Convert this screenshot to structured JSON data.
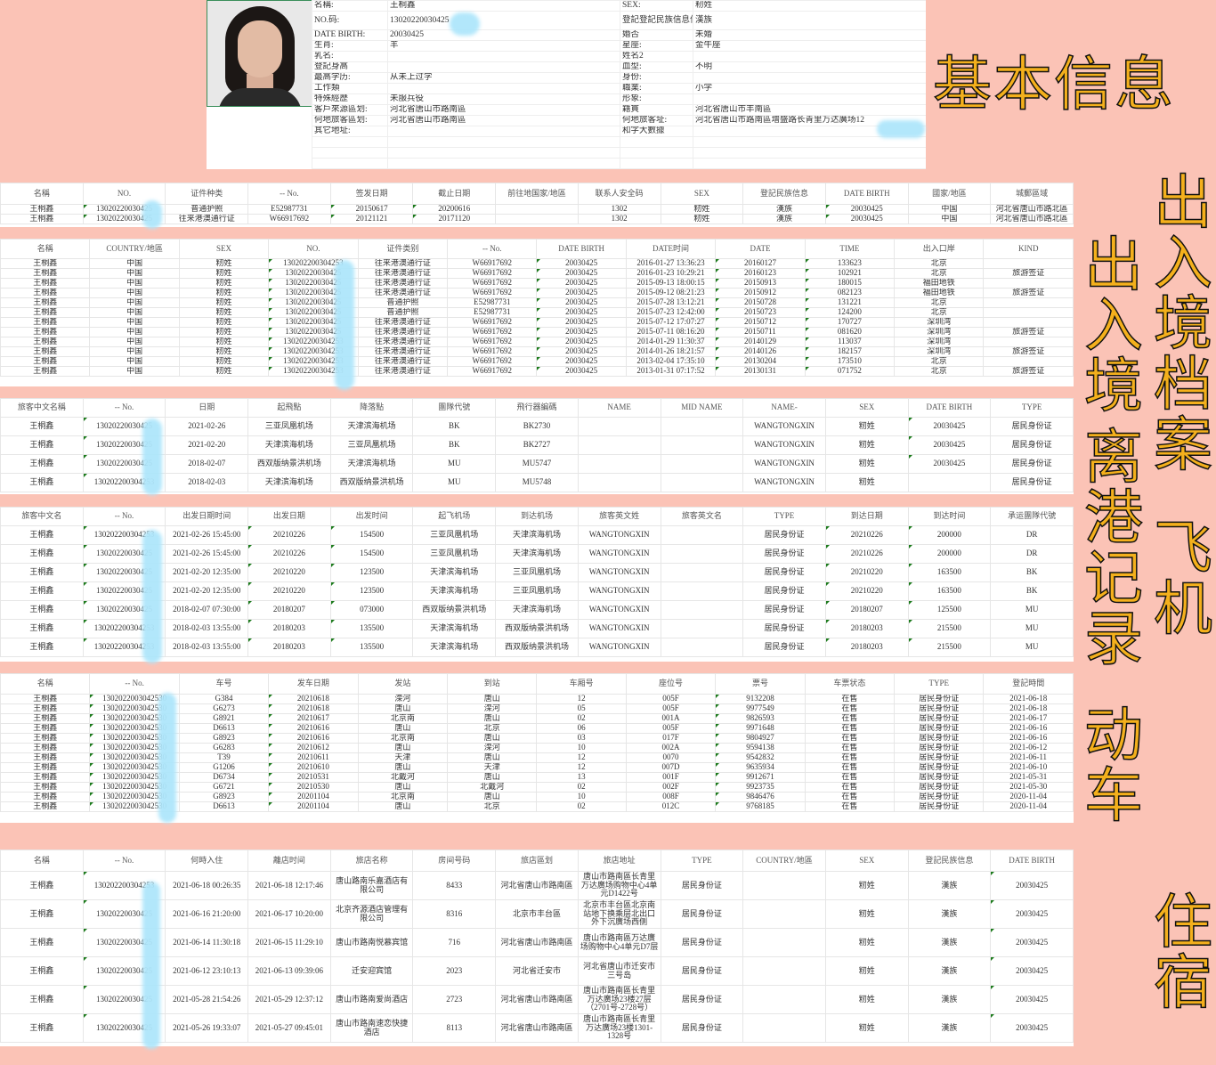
{
  "overlay_labels": {
    "basic": "基本信息",
    "archive": "出入境档案",
    "border": "出入境",
    "departure": "离港记录",
    "flight": "飞机",
    "train": "动车",
    "lodging": "住宿"
  },
  "colors": {
    "background": "#fbc3b6",
    "label_fill": "#f4b01c",
    "blur_mark": "#aee6fb"
  },
  "basic_info": {
    "photo_icon": "portrait-photo",
    "rows": [
      [
        "名稱:",
        "王桐鑫",
        "SEX:",
        "籾姓"
      ],
      [
        "NO.码:",
        "13020220030425",
        "登記登記民族信息信息:",
        "漢族"
      ],
      [
        "DATE BIRTH:",
        "20030425",
        "婚否",
        "未婚"
      ],
      [
        "生肖:",
        "羊",
        "星座:",
        "金牛座"
      ],
      [
        "乳名:",
        "",
        "姓名2",
        ""
      ],
      [
        "登記身高",
        "",
        "血型:",
        "不明"
      ],
      [
        "最高学历:",
        "从未上过学",
        "身份:",
        ""
      ],
      [
        "工作類",
        "",
        "職業:",
        "小学"
      ],
      [
        "特殊經歷",
        "未服兵役",
        "形象:",
        ""
      ],
      [
        "客戶來源區划:",
        "河北省唐山市路南區",
        "籍貫",
        "河北省唐山市丰南區"
      ],
      [
        "何地旅客區划:",
        "河北省唐山市路南區",
        "何地旅客址:",
        "河北省唐山市路南區增盛路长青里万达廣场12"
      ],
      [
        "其它地址:",
        "",
        "和字大數據",
        ""
      ]
    ]
  },
  "sections": [
    {
      "id": "s2",
      "name": "exit-entry-archive-table",
      "headers": [
        "名稱",
        "NO.",
        "证件种类",
        "-- No.",
        "签发日期",
        "截止日期",
        "前往地国家/地區",
        "联系人安全码",
        "SEX",
        "登記民族信息",
        "DATE BIRTH",
        "國家/地區",
        "城郵區域"
      ],
      "rows": [
        [
          "王桐鑫",
          "13020220030425",
          "普通护照",
          "E52987731",
          "20150617",
          "20200616",
          "",
          "1302",
          "籾姓",
          "漢族",
          "20030425",
          "中国",
          "河北省唐山市路北區"
        ],
        [
          "王桐鑫",
          "13020220030425",
          "往来港澳通行证",
          "W66917692",
          "20121121",
          "20171120",
          "",
          "1302",
          "籾姓",
          "漢族",
          "20030425",
          "中国",
          "河北省唐山市路北區"
        ]
      ]
    },
    {
      "id": "s3",
      "name": "exit-entry-records-table",
      "headers": [
        "名稱",
        "COUNTRY/地區",
        "SEX",
        "NO.",
        "证件类别",
        "-- No.",
        "DATE BIRTH",
        "DATE时间",
        "DATE",
        "TIME",
        "出入口岸",
        "KIND"
      ],
      "rows": [
        [
          "王桐鑫",
          "中国",
          "籾姓",
          "130202200304253",
          "往来港澳通行证",
          "W66917692",
          "20030425",
          "2016-01-27 13:36:23",
          "20160127",
          "133623",
          "北京",
          ""
        ],
        [
          "王桐鑫",
          "中国",
          "籾姓",
          "13020220030425",
          "往来港澳通行证",
          "W66917692",
          "20030425",
          "2016-01-23 10:29:21",
          "20160123",
          "102921",
          "北京",
          "旅游签证"
        ],
        [
          "王桐鑫",
          "中国",
          "籾姓",
          "13020220030425",
          "往来港澳通行证",
          "W66917692",
          "20030425",
          "2015-09-13 18:00:15",
          "20150913",
          "180015",
          "福田地铁",
          ""
        ],
        [
          "王桐鑫",
          "中国",
          "籾姓",
          "13020220030425",
          "往来港澳通行证",
          "W66917692",
          "20030425",
          "2015-09-12 08:21:23",
          "20150912",
          "082123",
          "福田地铁",
          "旅游签证"
        ],
        [
          "王桐鑫",
          "中国",
          "籾姓",
          "13020220030425",
          "普通护照",
          "E52987731",
          "20030425",
          "2015-07-28 13:12:21",
          "20150728",
          "131221",
          "北京",
          ""
        ],
        [
          "王桐鑫",
          "中国",
          "籾姓",
          "13020220030425",
          "普通护照",
          "E52987731",
          "20030425",
          "2015-07-23 12:42:00",
          "20150723",
          "124200",
          "北京",
          ""
        ],
        [
          "王桐鑫",
          "中国",
          "籾姓",
          "13020220030425",
          "往来港澳通行证",
          "W66917692",
          "20030425",
          "2015-07-12 17:07:27",
          "20150712",
          "170727",
          "深圳湾",
          ""
        ],
        [
          "王桐鑫",
          "中国",
          "籾姓",
          "13020220030425",
          "往来港澳通行证",
          "W66917692",
          "20030425",
          "2015-07-11 08:16:20",
          "20150711",
          "081620",
          "深圳湾",
          "旅游签证"
        ],
        [
          "王桐鑫",
          "中国",
          "籾姓",
          "130202200304253",
          "往来港澳通行证",
          "W66917692",
          "20030425",
          "2014-01-29 11:30:37",
          "20140129",
          "113037",
          "深圳湾",
          ""
        ],
        [
          "王桐鑫",
          "中国",
          "籾姓",
          "130202200304253",
          "往来港澳通行证",
          "W66917692",
          "20030425",
          "2014-01-26 18:21:57",
          "20140126",
          "182157",
          "深圳湾",
          "旅游签证"
        ],
        [
          "王桐鑫",
          "中国",
          "籾姓",
          "130202200304253",
          "往来港澳通行证",
          "W66917692",
          "20030425",
          "2013-02-04 17:35:10",
          "20130204",
          "173510",
          "北京",
          ""
        ],
        [
          "王桐鑫",
          "中国",
          "籾姓",
          "130202200304253",
          "往来港澳通行证",
          "W66917692",
          "20030425",
          "2013-01-31 07:17:52",
          "20130131",
          "071752",
          "北京",
          "旅游签证"
        ]
      ]
    },
    {
      "id": "s4",
      "name": "departure-records-table",
      "headers": [
        "旅客中文名稱",
        "-- No.",
        "日期",
        "起飛點",
        "降落點",
        "團隊代號",
        "飛行器編碼",
        "NAME",
        "MID NAME",
        "NAME-",
        "SEX",
        "DATE BIRTH",
        "TYPE"
      ],
      "rows": [
        [
          "王桐鑫",
          "13020220030425",
          "2021-02-26",
          "三亚凤凰机场",
          "天津滨海机场",
          "BK",
          "BK2730",
          "",
          "",
          "WANGTONGXIN",
          "籾姓",
          "20030425",
          "居民身份证"
        ],
        [
          "王桐鑫",
          "13020220030425",
          "2021-02-20",
          "天津滨海机场",
          "三亚凤凰机场",
          "BK",
          "BK2727",
          "",
          "",
          "WANGTONGXIN",
          "籾姓",
          "20030425",
          "居民身份证"
        ],
        [
          "王桐鑫",
          "13020220030425",
          "2018-02-07",
          "西双版纳景洪机场",
          "天津滨海机场",
          "MU",
          "MU5747",
          "",
          "",
          "WANGTONGXIN",
          "籾姓",
          "20030425",
          "居民身份证"
        ],
        [
          "王桐鑫",
          "130202200304253",
          "2018-02-03",
          "天津滨海机场",
          "西双版纳景洪机场",
          "MU",
          "MU5748",
          "",
          "",
          "WANGTONGXIN",
          "籾姓",
          "",
          "居民身份证"
        ]
      ]
    },
    {
      "id": "s5",
      "name": "flight-records-table",
      "headers": [
        "旅客中文名",
        "-- No.",
        "出发日期时间",
        "出发日期",
        "出发时间",
        "起飞机场",
        "到达机场",
        "旅客英文姓",
        "旅客英文名",
        "TYPE",
        "到达日期",
        "到达时间",
        "承运團隊代號"
      ],
      "rows": [
        [
          "王桐鑫",
          "130202200304253",
          "2021-02-26 15:45:00",
          "20210226",
          "154500",
          "三亚凤凰机场",
          "天津滨海机场",
          "WANGTONGXIN",
          "",
          "居民身份证",
          "20210226",
          "200000",
          "DR"
        ],
        [
          "王桐鑫",
          "13020220030425",
          "2021-02-26 15:45:00",
          "20210226",
          "154500",
          "三亚凤凰机场",
          "天津滨海机场",
          "WANGTONGXIN",
          "",
          "居民身份证",
          "20210226",
          "200000",
          "DR"
        ],
        [
          "王桐鑫",
          "13020220030425",
          "2021-02-20 12:35:00",
          "20210220",
          "123500",
          "天津滨海机场",
          "三亚凤凰机场",
          "WANGTONGXIN",
          "",
          "居民身份证",
          "20210220",
          "163500",
          "BK"
        ],
        [
          "王桐鑫",
          "13020220030425",
          "2021-02-20 12:35:00",
          "20210220",
          "123500",
          "天津滨海机场",
          "三亚凤凰机场",
          "WANGTONGXIN",
          "",
          "居民身份证",
          "20210220",
          "163500",
          "BK"
        ],
        [
          "王桐鑫",
          "13020220030425",
          "2018-02-07 07:30:00",
          "20180207",
          "073000",
          "西双版纳景洪机场",
          "天津滨海机场",
          "WANGTONGXIN",
          "",
          "居民身份证",
          "20180207",
          "125500",
          "MU"
        ],
        [
          "王桐鑫",
          "130202200304253",
          "2018-02-03 13:55:00",
          "20180203",
          "135500",
          "天津滨海机场",
          "西双版纳景洪机场",
          "WANGTONGXIN",
          "",
          "居民身份证",
          "20180203",
          "215500",
          "MU"
        ],
        [
          "王桐鑫",
          "130202200304253",
          "2018-02-03 13:55:00",
          "20180203",
          "135500",
          "天津滨海机场",
          "西双版纳景洪机场",
          "WANGTONGXIN",
          "",
          "居民身份证",
          "20180203",
          "215500",
          "MU"
        ]
      ]
    },
    {
      "id": "s6",
      "name": "train-records-table",
      "headers": [
        "名稱",
        "-- No.",
        "车号",
        "发车日期",
        "发站",
        "到站",
        "车厢号",
        "座位号",
        "票号",
        "车票状态",
        "TYPE",
        "登記時間"
      ],
      "rows": [
        [
          "王桐鑫",
          "1302022003042530",
          "G384",
          "20210618",
          "滦河",
          "唐山",
          "12",
          "005F",
          "9132208",
          "在售",
          "居民身份证",
          "2021-06-18"
        ],
        [
          "王桐鑫",
          "1302022003042530",
          "G6273",
          "20210618",
          "唐山",
          "滦河",
          "05",
          "005F",
          "9977549",
          "在售",
          "居民身份证",
          "2021-06-18"
        ],
        [
          "王桐鑫",
          "1302022003042530",
          "G8921",
          "20210617",
          "北京南",
          "唐山",
          "02",
          "001A",
          "9826593",
          "在售",
          "居民身份证",
          "2021-06-17"
        ],
        [
          "王桐鑫",
          "1302022003042530",
          "D6613",
          "20210616",
          "唐山",
          "北京",
          "06",
          "005F",
          "9971648",
          "在售",
          "居民身份证",
          "2021-06-16"
        ],
        [
          "王桐鑫",
          "1302022003042530",
          "G8923",
          "20210616",
          "北京南",
          "唐山",
          "03",
          "017F",
          "9804927",
          "在售",
          "居民身份证",
          "2021-06-16"
        ],
        [
          "王桐鑫",
          "1302022003042530",
          "G6283",
          "20210612",
          "唐山",
          "滦河",
          "10",
          "002A",
          "9594138",
          "在售",
          "居民身份证",
          "2021-06-12"
        ],
        [
          "王桐鑫",
          "1302022003042530",
          "T39",
          "20210611",
          "天津",
          "唐山",
          "12",
          "0070",
          "9542832",
          "在售",
          "居民身份证",
          "2021-06-11"
        ],
        [
          "王桐鑫",
          "1302022003042530",
          "G1206",
          "20210610",
          "唐山",
          "天津",
          "12",
          "007D",
          "9635934",
          "在售",
          "居民身份证",
          "2021-06-10"
        ],
        [
          "王桐鑫",
          "1302022003042530",
          "D6734",
          "20210531",
          "北戴河",
          "唐山",
          "13",
          "001F",
          "9912671",
          "在售",
          "居民身份证",
          "2021-05-31"
        ],
        [
          "王桐鑫",
          "1302022003042530",
          "G6721",
          "20210530",
          "唐山",
          "北戴河",
          "02",
          "002F",
          "9923735",
          "在售",
          "居民身份证",
          "2021-05-30"
        ],
        [
          "王桐鑫",
          "1302022003042530",
          "G8923",
          "20201104",
          "北京南",
          "唐山",
          "10",
          "008F",
          "9846476",
          "在售",
          "居民身份证",
          "2020-11-04"
        ],
        [
          "王桐鑫",
          "1302022003042530",
          "D6613",
          "20201104",
          "唐山",
          "北京",
          "02",
          "012C",
          "9768185",
          "在售",
          "居民身份证",
          "2020-11-04"
        ]
      ]
    },
    {
      "id": "s7",
      "name": "lodging-records-table",
      "headers": [
        "名稱",
        "-- No.",
        "何時入住",
        "離店时间",
        "旅店名称",
        "房间号码",
        "旅店區划",
        "旅店地址",
        "TYPE",
        "COUNTRY/地區",
        "SEX",
        "登記民族信息",
        "DATE BIRTH"
      ],
      "rows": [
        [
          "王桐鑫",
          "130202200304253",
          "2021-06-18 00:26:35",
          "2021-06-18 12:17:46",
          "唐山路南乐嘉酒店有限公司",
          "8433",
          "河北省唐山市路南區",
          "唐山市路南區长青里万达廣场购物中心4单元D1422号",
          "居民身份证",
          "",
          "籾姓",
          "漢族",
          "20030425"
        ],
        [
          "王桐鑫",
          "13020220030425",
          "2021-06-16 21:20:00",
          "2021-06-17 10:20:00",
          "北京齐源酒店管理有限公司",
          "8316",
          "北京市丰台區",
          "北京市丰台區北京南站地下换乘层北出口外下沉廣场西侧",
          "居民身份证",
          "",
          "籾姓",
          "漢族",
          "20030425"
        ],
        [
          "王桐鑫",
          "13020220030425",
          "2021-06-14 11:30:18",
          "2021-06-15 11:29:10",
          "唐山市路南悦慕宾馆",
          "716",
          "河北省唐山市路南區",
          "唐山市路南區万达廣场购物中心4单元D7层",
          "居民身份证",
          "",
          "籾姓",
          "漢族",
          "20030425"
        ],
        [
          "王桐鑫",
          "13020220030425",
          "2021-06-12 23:10:13",
          "2021-06-13 09:39:06",
          "迁安迎宾馆",
          "2023",
          "河北省迁安市",
          "河北省唐山市迁安市三号岛",
          "居民身份证",
          "",
          "籾姓",
          "漢族",
          "20030425"
        ],
        [
          "王桐鑫",
          "13020220030425",
          "2021-05-28 21:54:26",
          "2021-05-29 12:37:12",
          "唐山市路南爱尚酒店",
          "2723",
          "河北省唐山市路南區",
          "唐山市路南區长青里万达廣场23楼27层（2701号-2728号）",
          "居民身份证",
          "",
          "籾姓",
          "漢族",
          "20030425"
        ],
        [
          "王桐鑫",
          "13020220030425",
          "2021-05-26 19:33:07",
          "2021-05-27 09:45:01",
          "唐山市路南速恋快捷酒店",
          "8113",
          "河北省唐山市路南區",
          "唐山市路南區长青里万达廣场23楼1301-1328号",
          "居民身份证",
          "",
          "籾姓",
          "漢族",
          "20030425"
        ]
      ]
    }
  ]
}
